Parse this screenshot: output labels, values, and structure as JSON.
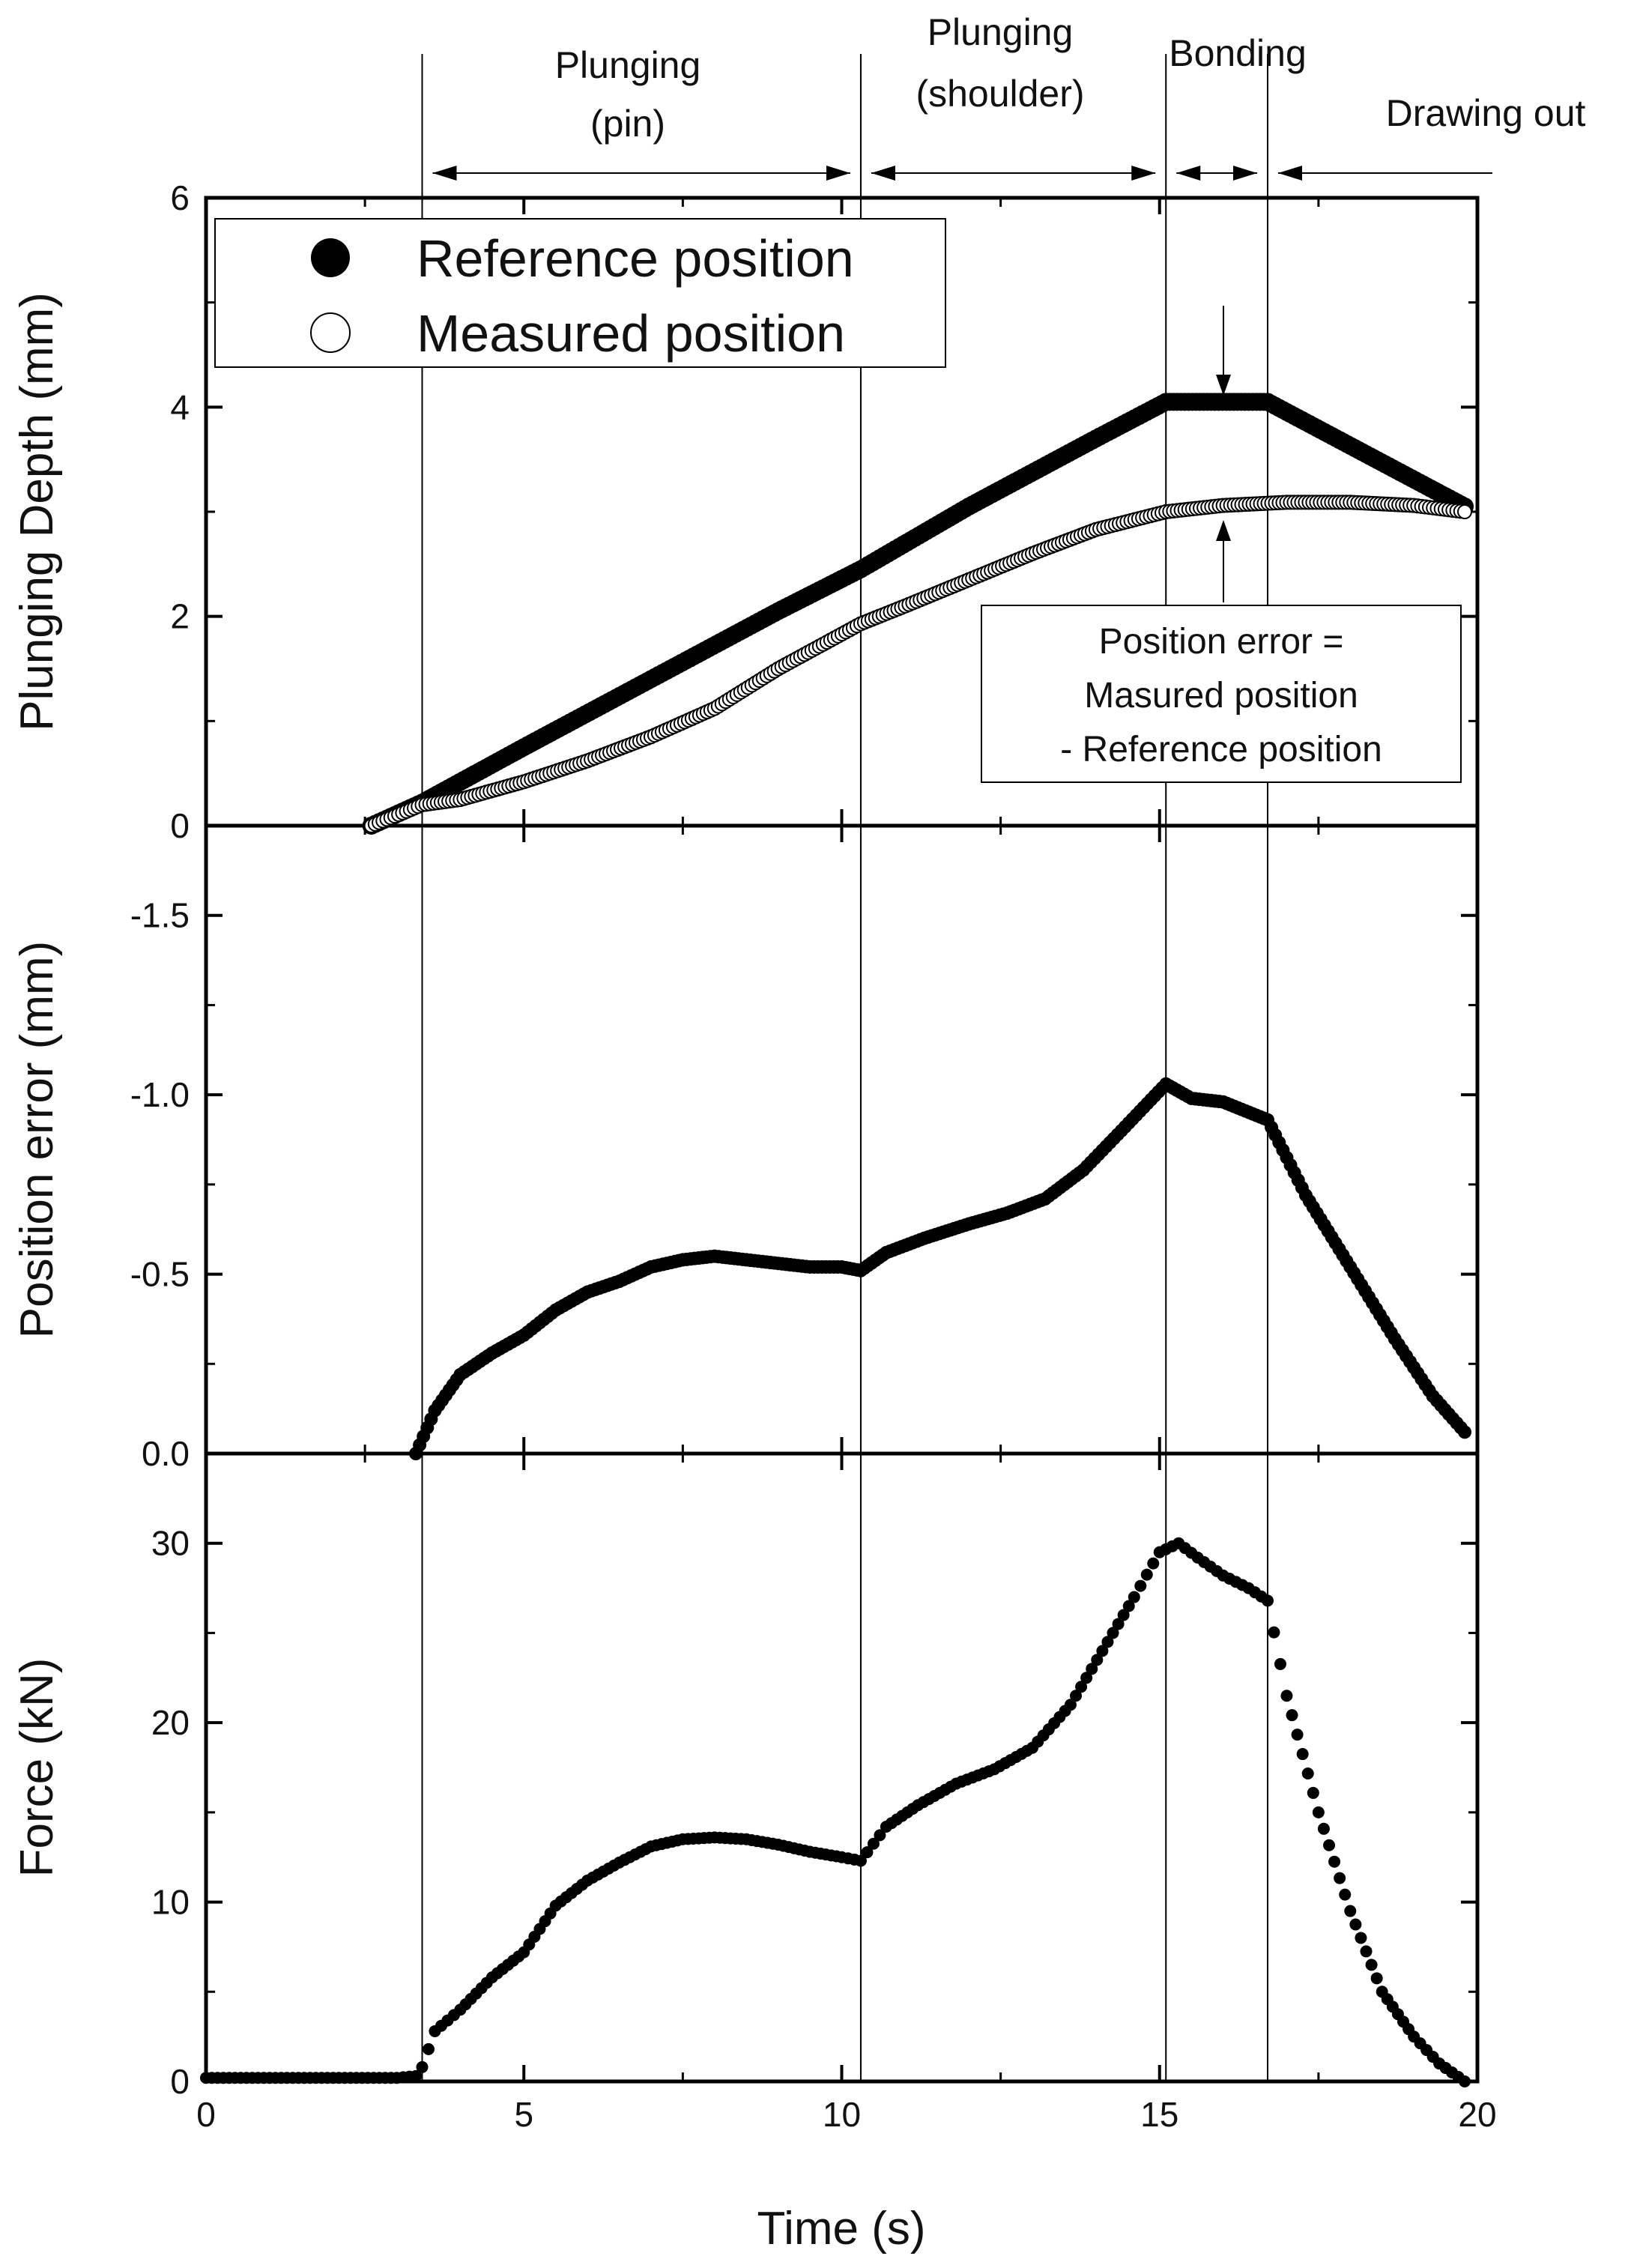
{
  "figure": {
    "x_axis": {
      "label": "Time (s)",
      "range": [
        0,
        20
      ],
      "ticks": [
        "0",
        "5",
        "10",
        "15",
        "20"
      ]
    },
    "phase_boundaries_s": [
      3.4,
      10.3,
      15.1,
      16.7
    ],
    "phases": [
      {
        "name": "Plunging (pin)",
        "lines": [
          "Plunging",
          "(pin)"
        ],
        "from_s": 3.4,
        "to_s": 10.3
      },
      {
        "name": "Plunging (shoulder)",
        "lines": [
          "Plunging",
          "(shoulder)"
        ],
        "from_s": 10.3,
        "to_s": 15.1
      },
      {
        "name": "Bonding",
        "lines": [
          "Bonding"
        ],
        "from_s": 15.1,
        "to_s": 16.7
      },
      {
        "name": "Drawing out",
        "lines": [
          "Drawing out"
        ],
        "from_s": 16.7,
        "to_s": 21
      }
    ],
    "legend": {
      "reference": "Reference position",
      "measured": "Measured position"
    },
    "annotation": [
      "Position error =",
      "Masured position",
      "- Reference position"
    ],
    "annotation_time_s": 15.9,
    "colors": {
      "marker_fill": "#000000",
      "open_marker_fill": "#ffffff",
      "line": "#000000",
      "background": "#ffffff"
    }
  },
  "chart_data": [
    {
      "type": "scatter",
      "panel": "top",
      "ylabel": "Plunging Depth (mm)",
      "ylim": [
        0,
        6
      ],
      "yticks": [
        "0",
        "2",
        "4",
        "6"
      ],
      "xlim": [
        0,
        20
      ],
      "series": [
        {
          "name": "Reference position",
          "marker": "filled",
          "x": [
            2.6,
            3.4,
            5,
            7,
            9,
            10.3,
            12,
            14,
            15.1,
            16.7,
            19.8
          ],
          "y": [
            0,
            0.22,
            0.75,
            1.4,
            2.05,
            2.45,
            3.05,
            3.7,
            4.05,
            4.05,
            3.05
          ]
        },
        {
          "name": "Measured position",
          "marker": "open",
          "x": [
            2.6,
            3.4,
            4,
            5,
            6,
            7,
            8,
            9,
            10.3,
            11,
            12,
            13,
            14,
            15.1,
            16,
            17,
            18,
            19,
            19.8
          ],
          "y": [
            0,
            0.2,
            0.25,
            0.42,
            0.62,
            0.85,
            1.12,
            1.5,
            1.93,
            2.1,
            2.35,
            2.6,
            2.83,
            3.0,
            3.06,
            3.09,
            3.09,
            3.06,
            3.0
          ]
        }
      ]
    },
    {
      "type": "scatter",
      "panel": "middle",
      "ylabel": "Position error (mm)",
      "ylim": [
        0,
        -1.75
      ],
      "yticks": [
        "0.0",
        "-0.5",
        "-1.0",
        "-1.5"
      ],
      "xlim": [
        0,
        20
      ],
      "series": [
        {
          "name": "Position error",
          "marker": "filled",
          "x": [
            3.3,
            3.6,
            4.0,
            4.5,
            5.0,
            5.5,
            6.0,
            6.5,
            7.0,
            7.5,
            8.0,
            8.5,
            9.0,
            9.5,
            10.0,
            10.3,
            10.7,
            11.3,
            12.0,
            12.6,
            13.2,
            13.8,
            14.4,
            15.1,
            15.5,
            16.0,
            16.7,
            17.3,
            18.0,
            18.7,
            19.3,
            19.8
          ],
          "y": [
            0,
            -0.12,
            -0.22,
            -0.28,
            -0.33,
            -0.4,
            -0.45,
            -0.48,
            -0.52,
            -0.54,
            -0.55,
            -0.54,
            -0.53,
            -0.52,
            -0.52,
            -0.51,
            -0.56,
            -0.6,
            -0.64,
            -0.67,
            -0.71,
            -0.79,
            -0.9,
            -1.03,
            -0.99,
            -0.98,
            -0.93,
            -0.72,
            -0.52,
            -0.32,
            -0.16,
            -0.06
          ]
        }
      ]
    },
    {
      "type": "scatter",
      "panel": "bottom",
      "ylabel": "Force (kN)",
      "ylim": [
        0,
        35
      ],
      "yticks": [
        "0",
        "10",
        "20",
        "30"
      ],
      "xlim": [
        0,
        20
      ],
      "xlabel": "Time (s)",
      "series": [
        {
          "name": "Force",
          "marker": "filled",
          "x": [
            0,
            1,
            2,
            3,
            3.3,
            3.4,
            3.6,
            4.0,
            4.5,
            5.0,
            5.5,
            6.0,
            6.5,
            7.0,
            7.5,
            8.0,
            8.5,
            9.0,
            9.5,
            10.0,
            10.3,
            10.7,
            11.2,
            11.8,
            12.4,
            13.0,
            13.6,
            14.1,
            14.6,
            15.0,
            15.3,
            15.6,
            16.0,
            16.4,
            16.7,
            17.0,
            17.5,
            18.0,
            18.5,
            19.0,
            19.4,
            19.8
          ],
          "y": [
            0.2,
            0.2,
            0.2,
            0.2,
            0.3,
            0.8,
            2.8,
            4.0,
            5.8,
            7.2,
            9.8,
            11.2,
            12.2,
            13.1,
            13.5,
            13.6,
            13.5,
            13.2,
            12.8,
            12.5,
            12.3,
            14.2,
            15.4,
            16.6,
            17.4,
            18.6,
            21.0,
            24.0,
            27.0,
            29.5,
            30.0,
            29.2,
            28.2,
            27.5,
            26.8,
            21.5,
            15.0,
            9.5,
            5.0,
            2.5,
            1.0,
            0.0
          ]
        }
      ]
    }
  ]
}
